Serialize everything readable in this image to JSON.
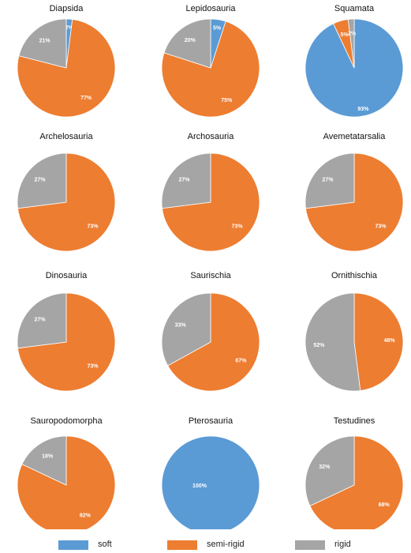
{
  "colors": {
    "soft": "#5b9bd5",
    "semi-rigid": "#ed7d31",
    "rigid": "#a5a5a5"
  },
  "chart_data": [
    {
      "type": "pie",
      "title": "Diapsida",
      "labels": [
        "soft",
        "semi-rigid",
        "rigid"
      ],
      "values": [
        2,
        77,
        21
      ],
      "value_labels": [
        "2%",
        "77%",
        "21%"
      ]
    },
    {
      "type": "pie",
      "title": "Lepidosauria",
      "labels": [
        "soft",
        "semi-rigid",
        "rigid"
      ],
      "values": [
        5,
        75,
        20
      ],
      "value_labels": [
        "5%",
        "75%",
        "20%"
      ]
    },
    {
      "type": "pie",
      "title": "Squamata",
      "labels": [
        "soft",
        "semi-rigid",
        "rigid"
      ],
      "values": [
        93,
        5,
        2
      ],
      "value_labels": [
        "93%",
        "5%",
        "2%"
      ]
    },
    {
      "type": "pie",
      "title": "Archelosauria",
      "labels": [
        "soft",
        "semi-rigid",
        "rigid"
      ],
      "values": [
        0,
        73,
        27
      ],
      "value_labels": [
        "",
        "73%",
        "27%"
      ]
    },
    {
      "type": "pie",
      "title": "Archosauria",
      "labels": [
        "soft",
        "semi-rigid",
        "rigid"
      ],
      "values": [
        0,
        73,
        27
      ],
      "value_labels": [
        "",
        "73%",
        "27%"
      ]
    },
    {
      "type": "pie",
      "title": "Avemetatarsalia",
      "labels": [
        "soft",
        "semi-rigid",
        "rigid"
      ],
      "values": [
        0,
        73,
        27
      ],
      "value_labels": [
        "",
        "73%",
        "27%"
      ]
    },
    {
      "type": "pie",
      "title": "Dinosauria",
      "labels": [
        "soft",
        "semi-rigid",
        "rigid"
      ],
      "values": [
        0,
        73,
        27
      ],
      "value_labels": [
        "",
        "73%",
        "27%"
      ]
    },
    {
      "type": "pie",
      "title": "Saurischia",
      "labels": [
        "soft",
        "semi-rigid",
        "rigid"
      ],
      "values": [
        0,
        67,
        33
      ],
      "value_labels": [
        "",
        "67%",
        "33%"
      ]
    },
    {
      "type": "pie",
      "title": "Ornithischia",
      "labels": [
        "soft",
        "semi-rigid",
        "rigid"
      ],
      "values": [
        0,
        48,
        52
      ],
      "value_labels": [
        "",
        "48%",
        "52%"
      ]
    },
    {
      "type": "pie",
      "title": "Sauropodomorpha",
      "labels": [
        "soft",
        "semi-rigid",
        "rigid"
      ],
      "values": [
        0,
        82,
        18
      ],
      "value_labels": [
        "",
        "82%",
        "18%"
      ]
    },
    {
      "type": "pie",
      "title": "Pterosauria",
      "labels": [
        "soft",
        "semi-rigid",
        "rigid"
      ],
      "values": [
        100,
        0,
        0
      ],
      "value_labels": [
        "100%",
        "",
        ""
      ]
    },
    {
      "type": "pie",
      "title": "Testudines",
      "labels": [
        "soft",
        "semi-rigid",
        "rigid"
      ],
      "values": [
        0,
        68,
        32
      ],
      "value_labels": [
        "",
        "68%",
        "32%"
      ]
    }
  ],
  "legend": [
    {
      "key": "soft",
      "label": "soft"
    },
    {
      "key": "semi-rigid",
      "label": "semi-rigid"
    },
    {
      "key": "rigid",
      "label": "rigid"
    }
  ]
}
